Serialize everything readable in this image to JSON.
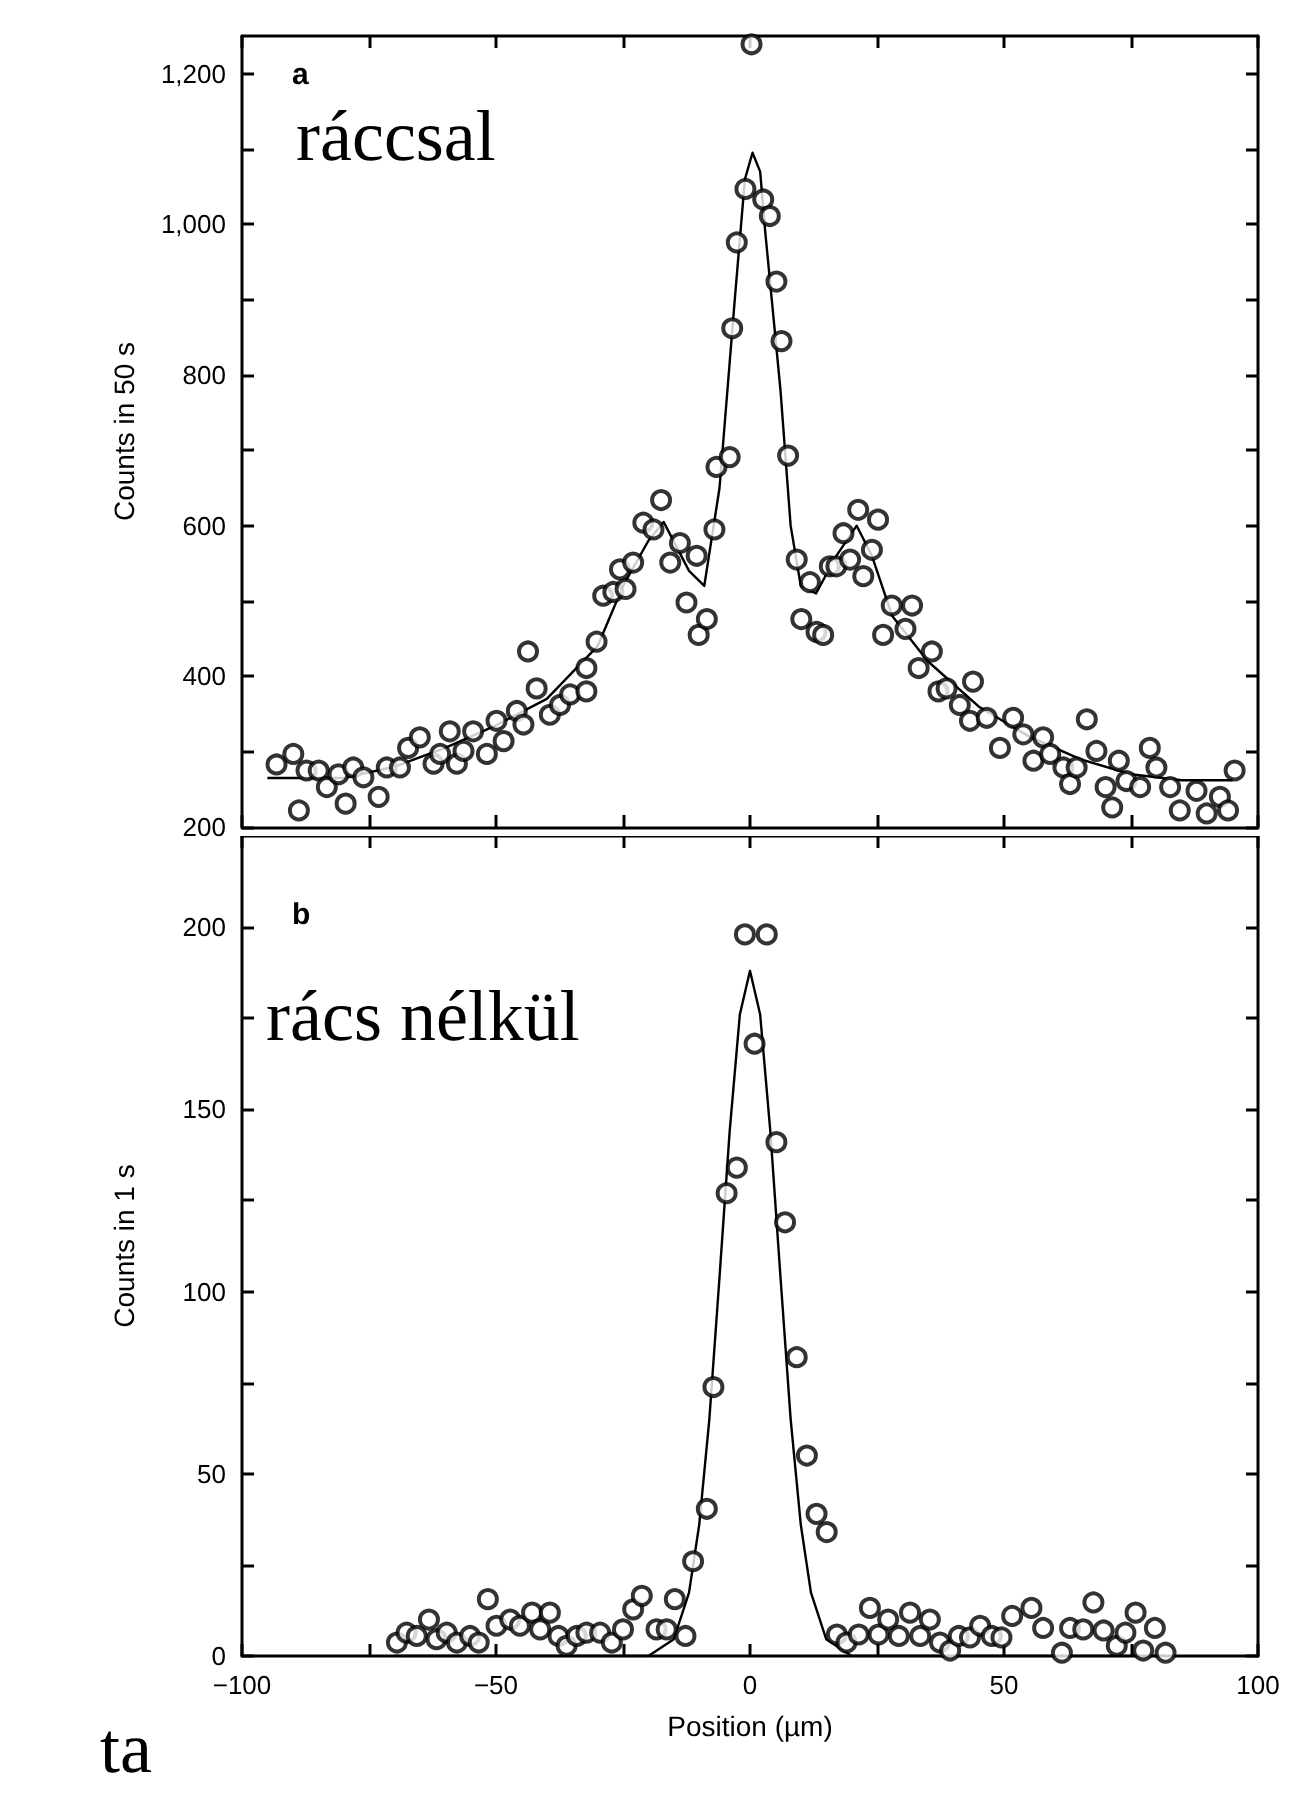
{
  "chart_data": [
    {
      "type": "scatter",
      "ylabel": "Counts in 50 s",
      "annotations": [
        "a",
        "ráccsal"
      ],
      "xlim": [
        -100,
        100
      ],
      "ylim": [
        200,
        1250
      ],
      "xticks": [
        {
          "value": -100,
          "label": null
        },
        {
          "value": -75,
          "label": null
        },
        {
          "value": -50,
          "label": null
        },
        {
          "value": -25,
          "label": null
        },
        {
          "value": 0,
          "label": null
        },
        {
          "value": 25,
          "label": null
        },
        {
          "value": 50,
          "label": null
        },
        {
          "value": 75,
          "label": null
        },
        {
          "value": 100,
          "label": null
        }
      ],
      "yticks": [
        200,
        {
          "value": 300,
          "label": null
        },
        400,
        {
          "value": 500,
          "label": null
        },
        600,
        {
          "value": 700,
          "label": null
        },
        800,
        {
          "value": 900,
          "label": null
        },
        {
          "value": 1000,
          "label": "1,000"
        },
        {
          "value": 1100,
          "label": null
        },
        {
          "value": 1200,
          "label": "1,200"
        }
      ],
      "tick_labels": "y",
      "grid": false,
      "marker": "circle",
      "series": [
        {
          "type": "scatter",
          "color": "#000000",
          "x": [
            -93.2,
            -89.9,
            -88.8,
            -87.3,
            -84.9,
            -83.3,
            -81,
            -79.6,
            -78.1,
            -76.1,
            -73.1,
            -71.5,
            -68.9,
            -67.3,
            -65,
            -62.3,
            -61,
            -59.1,
            -57.7,
            -56.4,
            -54.5,
            -51.8,
            -49.9,
            -48.5,
            -45.9,
            -44.6,
            -43.7,
            -42,
            -39.4,
            -37.4,
            -35.4,
            -32.2,
            -32.2,
            -30.2,
            -28.9,
            -26.9,
            -24.5,
            -25.6,
            -23,
            -21,
            -19,
            -17.5,
            -15.7,
            -13.8,
            -12.5,
            -10.5,
            -10.1,
            -8.5,
            -7,
            -6.6,
            -4,
            -3.5,
            -2.6,
            -0.9,
            0.3,
            2.6,
            3.9,
            5.2,
            6.2,
            7.5,
            9.2,
            11.8,
            10.1,
            13.1,
            14.4,
            15.7,
            17,
            18.4,
            19.7,
            21.3,
            22.3,
            24,
            25.2,
            26.2,
            27.9,
            30.6,
            31.9,
            33.2,
            35.8,
            37.1,
            38.7,
            41.3,
            43.9,
            43.3,
            46.6,
            49.2,
            51.8,
            53.8,
            55.8,
            57.7,
            59.1,
            61.7,
            63,
            64.3,
            66.3,
            68.2,
            70,
            71.3,
            72.6,
            74.1,
            76.8,
            78.7,
            80,
            82.7,
            84.6,
            87.9,
            89.9,
            92.5,
            94.1,
            95.4
          ],
          "values": [
            283,
            297,
            222,
            275,
            275,
            253,
            270,
            231,
            279,
            266,
            240,
            279,
            279,
            305,
            319,
            284,
            297,
            327,
            284,
            301,
            327,
            297,
            341,
            314,
            354,
            336,
            433,
            384,
            349,
            362,
            376,
            380,
            411,
            446,
            507,
            512,
            516,
            542,
            551,
            604,
            595,
            634,
            551,
            577,
            498,
            560,
            455,
            476,
            595,
            678,
            691,
            862,
            976,
            1047,
            1239,
            1033,
            1011,
            924,
            845,
            693,
            555,
            525,
            476,
            459,
            455,
            546,
            546,
            590,
            555,
            621,
            533,
            568,
            608,
            455,
            494,
            463,
            494,
            411,
            433,
            380,
            384,
            362,
            393,
            341,
            345,
            305,
            345,
            323,
            288,
            319,
            297,
            279,
            257,
            279,
            343,
            301,
            253,
            226,
            288,
            261,
            253,
            305,
            279,
            253,
            222,
            248,
            218,
            240,
            222,
            275
          ]
        },
        {
          "type": "line",
          "color": "#000000",
          "marker": "none",
          "x": [
            -95,
            -80,
            -70,
            -60,
            -50,
            -40,
            -30,
            -25,
            -20,
            -17,
            -12,
            -9,
            -6,
            -3,
            -1,
            0.5,
            2,
            3,
            6,
            8,
            10,
            13,
            17,
            21,
            24,
            28,
            35,
            45,
            55,
            65,
            75,
            85,
            95
          ],
          "values": [
            265,
            265,
            280,
            305,
            335,
            370,
            440,
            520,
            580,
            605,
            540,
            520,
            650,
            900,
            1060,
            1095,
            1070,
            990,
            780,
            600,
            520,
            510,
            560,
            600,
            560,
            480,
            420,
            360,
            320,
            290,
            270,
            262,
            262
          ]
        }
      ]
    },
    {
      "type": "scatter",
      "xlabel": "Position (µm)",
      "ylabel": "Counts in 1 s",
      "annotations": [
        "b",
        "rács nélkül",
        "ta"
      ],
      "xlim": [
        -100,
        100
      ],
      "ylim": [
        0,
        225
      ],
      "xticks": [
        {
          "value": -100,
          "label": "−100"
        },
        {
          "value": -75,
          "label": null
        },
        {
          "value": -50,
          "label": "−50"
        },
        {
          "value": -25,
          "label": null
        },
        0,
        {
          "value": 25,
          "label": null
        },
        50,
        {
          "value": 75,
          "label": null
        },
        100
      ],
      "yticks": [
        0,
        {
          "value": 25,
          "label": null
        },
        50,
        {
          "value": 75,
          "label": null
        },
        100,
        {
          "value": 125,
          "label": null
        },
        150,
        {
          "value": 175,
          "label": null
        },
        200
      ],
      "grid": false,
      "marker": "circle",
      "series": [
        {
          "type": "scatter",
          "color": "#000000",
          "x": [
            -69.5,
            -67.6,
            -65.6,
            -63.2,
            -61.7,
            -59.7,
            -57.7,
            -55.1,
            -53.4,
            -51.6,
            -49.9,
            -47.2,
            -45.3,
            -42.9,
            -41.3,
            -39.4,
            -37.7,
            -36.1,
            -34.1,
            -32.2,
            -29.5,
            -27.2,
            -25,
            -23,
            -21.3,
            -18.4,
            -16.4,
            -14.8,
            -12.7,
            -11.2,
            -8.5,
            -7.2,
            -4.6,
            -2.6,
            -1,
            0.9,
            3.3,
            5.2,
            6.9,
            9.2,
            11.2,
            13.1,
            15.1,
            17.1,
            19,
            21.4,
            23.6,
            25.3,
            27.2,
            29.3,
            31.5,
            33.5,
            35.4,
            37.4,
            39.4,
            41.1,
            43.3,
            45.3,
            47.6,
            49.5,
            51.6,
            55.4,
            57.7,
            61.4,
            63,
            65.6,
            67.6,
            69.6,
            72.2,
            73.9,
            75.9,
            77.4,
            79.7,
            81.8
          ],
          "values": [
            3.7,
            6.4,
            5.5,
            10,
            4.6,
            6.4,
            3.7,
            5.5,
            3.7,
            15.6,
            8.3,
            10,
            8.3,
            11.9,
            7.3,
            11.9,
            5.5,
            2.8,
            5.5,
            6.4,
            6.4,
            3.7,
            7.3,
            12.8,
            16.5,
            7.3,
            7.3,
            15.6,
            5.5,
            26,
            40.4,
            73.8,
            127,
            134,
            198,
            168,
            198,
            141,
            119,
            82,
            55,
            39,
            34,
            5.9,
            3.7,
            5.9,
            13.2,
            5.9,
            10,
            5.5,
            11.9,
            5.5,
            10,
            3.7,
            1.5,
            5.5,
            5.1,
            8.3,
            5.5,
            5.1,
            11,
            13.2,
            7.7,
            0.9,
            7.7,
            7.3,
            14.7,
            7,
            2.8,
            6.4,
            11.9,
            1.5,
            7.7,
            0.9
          ]
        },
        {
          "type": "line",
          "color": "#000000",
          "marker": "none",
          "x": [
            -70,
            -20,
            -15,
            -12,
            -10,
            -8,
            -6,
            -4,
            -2,
            0,
            2,
            4,
            6,
            8,
            10,
            12,
            15,
            20,
            82
          ],
          "values": [
            0,
            0,
            4.6,
            17.4,
            36,
            65,
            104,
            144,
            176,
            188,
            176,
            144,
            104,
            65,
            36,
            17.4,
            4.6,
            0,
            0
          ]
        }
      ]
    }
  ]
}
